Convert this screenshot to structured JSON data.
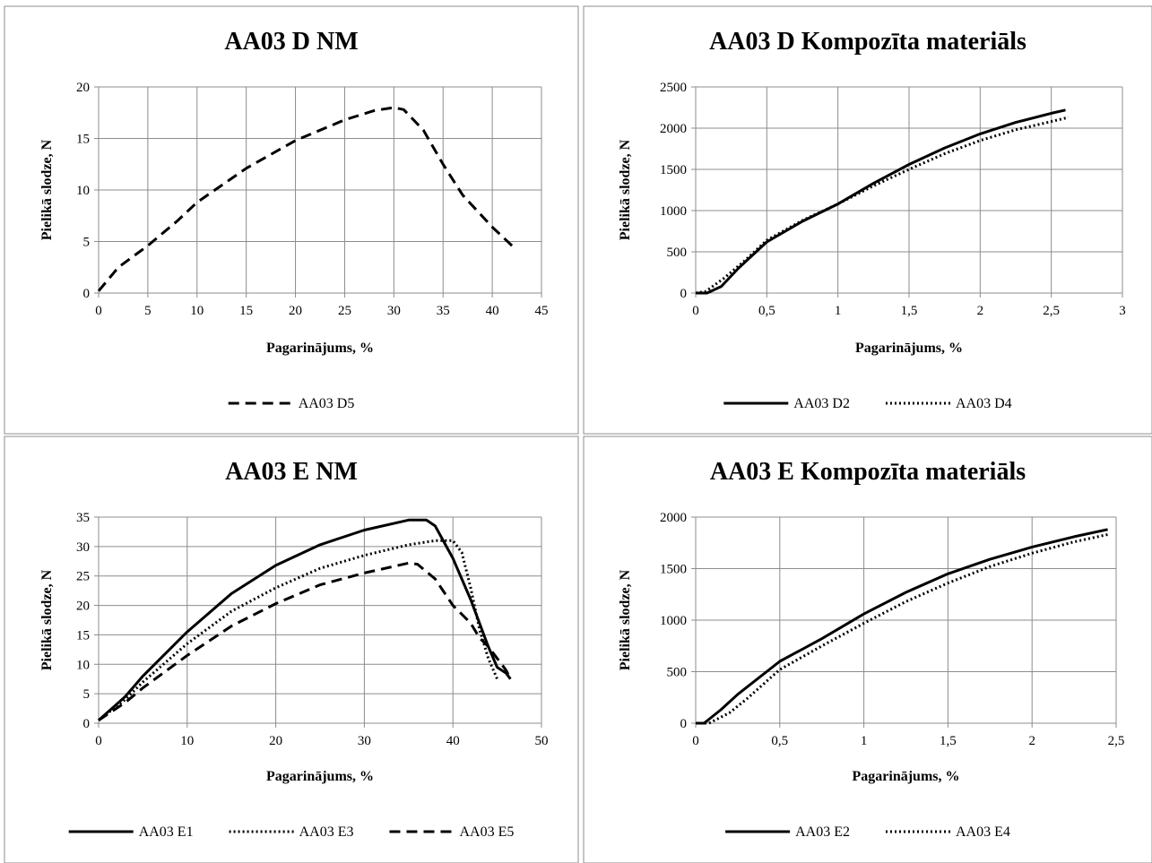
{
  "chart_data": [
    {
      "type": "line",
      "title": "AA03 D NM",
      "xlabel": "Pagarinājums, %",
      "ylabel": "Pielikā slodze, N",
      "xlim": [
        0,
        45
      ],
      "ylim": [
        0,
        20
      ],
      "xticks": [
        0,
        5,
        10,
        15,
        20,
        25,
        30,
        35,
        40,
        45
      ],
      "xtick_labels": [
        "0",
        "5",
        "10",
        "15",
        "20",
        "25",
        "30",
        "35",
        "40",
        "45"
      ],
      "yticks": [
        0,
        5,
        10,
        15,
        20
      ],
      "ytick_labels": [
        "0",
        "5",
        "10",
        "15",
        "20"
      ],
      "grid": true,
      "legend": "bottom",
      "series": [
        {
          "name": "AA03 D5",
          "style": "dashed",
          "x": [
            0,
            2,
            5,
            8,
            10,
            15,
            20,
            25,
            28,
            30,
            31,
            33,
            35,
            37,
            40,
            42
          ],
          "y": [
            0.2,
            2.5,
            4.6,
            7,
            8.8,
            12.1,
            14.8,
            16.8,
            17.7,
            18,
            17.8,
            15.8,
            12.5,
            9.5,
            6.4,
            4.6
          ]
        }
      ]
    },
    {
      "type": "line",
      "title": "AA03 D Kompozīta materiāls",
      "xlabel": "Pagarinājums, %",
      "ylabel": "Pielikā slodze, N",
      "xlim": [
        0,
        3
      ],
      "ylim": [
        0,
        2500
      ],
      "xticks": [
        0,
        0.5,
        1,
        1.5,
        2,
        2.5,
        3
      ],
      "xtick_labels": [
        "0",
        "0,5",
        "1",
        "1,5",
        "2",
        "2,5",
        "3"
      ],
      "yticks": [
        0,
        500,
        1000,
        1500,
        2000,
        2500
      ],
      "ytick_labels": [
        "0",
        "500",
        "1000",
        "1500",
        "2000",
        "2500"
      ],
      "grid": true,
      "legend": "bottom",
      "series": [
        {
          "name": "AA03 D2",
          "style": "solid",
          "x": [
            0,
            0.08,
            0.18,
            0.3,
            0.5,
            0.75,
            1.0,
            1.25,
            1.5,
            1.75,
            2.0,
            2.25,
            2.5,
            2.6
          ],
          "y": [
            0,
            0,
            80,
            300,
            620,
            870,
            1080,
            1330,
            1560,
            1760,
            1930,
            2070,
            2180,
            2220
          ]
        },
        {
          "name": "AA03 D4",
          "style": "dotted",
          "x": [
            0,
            0.07,
            0.2,
            0.35,
            0.5,
            0.75,
            1.0,
            1.25,
            1.5,
            1.75,
            2.0,
            2.25,
            2.5,
            2.62
          ],
          "y": [
            0,
            20,
            180,
            400,
            640,
            880,
            1080,
            1300,
            1500,
            1690,
            1850,
            1980,
            2080,
            2130
          ]
        }
      ]
    },
    {
      "type": "line",
      "title": "AA03 E NM",
      "xlabel": "Pagarinājums, %",
      "ylabel": "Pielikā  slodze, N",
      "xlim": [
        0,
        50
      ],
      "ylim": [
        0,
        35
      ],
      "xticks": [
        0,
        10,
        20,
        30,
        40,
        50
      ],
      "xtick_labels": [
        "0",
        "10",
        "20",
        "30",
        "40",
        "50"
      ],
      "yticks": [
        0,
        5,
        10,
        15,
        20,
        25,
        30,
        35
      ],
      "ytick_labels": [
        "0",
        "5",
        "10",
        "15",
        "20",
        "25",
        "30",
        "35"
      ],
      "grid": true,
      "legend": "bottom",
      "series": [
        {
          "name": "AA03 E1",
          "style": "solid",
          "x": [
            0,
            3,
            5,
            10,
            15,
            20,
            25,
            30,
            35,
            37,
            38,
            40,
            42,
            44,
            45,
            46,
            46.5
          ],
          "y": [
            0.5,
            4.5,
            8,
            15.5,
            22,
            26.8,
            30.3,
            32.8,
            34.5,
            34.5,
            33.5,
            28,
            21,
            13,
            9.5,
            8.5,
            7.5
          ]
        },
        {
          "name": "AA03 E3",
          "style": "dotted",
          "x": [
            0,
            3,
            5,
            10,
            15,
            20,
            25,
            30,
            35,
            38,
            40,
            41,
            42,
            43,
            44,
            45
          ],
          "y": [
            0.5,
            4,
            7,
            13.5,
            19,
            23,
            26.3,
            28.5,
            30.3,
            31,
            31,
            29,
            23,
            16,
            11,
            7.5
          ]
        },
        {
          "name": "AA03 E5",
          "style": "dashed",
          "x": [
            0,
            3,
            5,
            10,
            15,
            20,
            25,
            30,
            35,
            36,
            38,
            40,
            42,
            43,
            44,
            45,
            46,
            46.5
          ],
          "y": [
            0.5,
            3.5,
            6,
            11.5,
            16.5,
            20.3,
            23.5,
            25.5,
            27.2,
            27,
            24.5,
            20,
            17,
            14.5,
            13,
            11,
            9,
            7.5
          ]
        }
      ]
    },
    {
      "type": "line",
      "title": "AA03 E Kompozīta materiāls",
      "xlabel": "Pagarinājums, %",
      "ylabel": "Pielikā slodze, N",
      "xlim": [
        0,
        2.5
      ],
      "ylim": [
        0,
        2000
      ],
      "xticks": [
        0,
        0.5,
        1,
        1.5,
        2,
        2.5
      ],
      "xtick_labels": [
        "0",
        "0,5",
        "1",
        "1,5",
        "2",
        "2,5"
      ],
      "yticks": [
        0,
        500,
        1000,
        1500,
        2000
      ],
      "ytick_labels": [
        "0",
        "500",
        "1000",
        "1500",
        "2000"
      ],
      "grid": true,
      "legend": "bottom",
      "series": [
        {
          "name": "AA03 E2",
          "style": "solid",
          "x": [
            0,
            0.05,
            0.15,
            0.25,
            0.5,
            0.75,
            1.0,
            1.25,
            1.5,
            1.75,
            2.0,
            2.25,
            2.45
          ],
          "y": [
            0,
            0,
            130,
            280,
            600,
            820,
            1060,
            1270,
            1450,
            1590,
            1710,
            1810,
            1880
          ]
        },
        {
          "name": "AA03 E4",
          "style": "dotted",
          "x": [
            0,
            0.08,
            0.2,
            0.3,
            0.5,
            0.75,
            1.0,
            1.25,
            1.5,
            1.75,
            2.0,
            2.25,
            2.45
          ],
          "y": [
            0,
            0,
            100,
            230,
            520,
            750,
            970,
            1180,
            1360,
            1520,
            1650,
            1760,
            1830
          ]
        }
      ]
    }
  ]
}
